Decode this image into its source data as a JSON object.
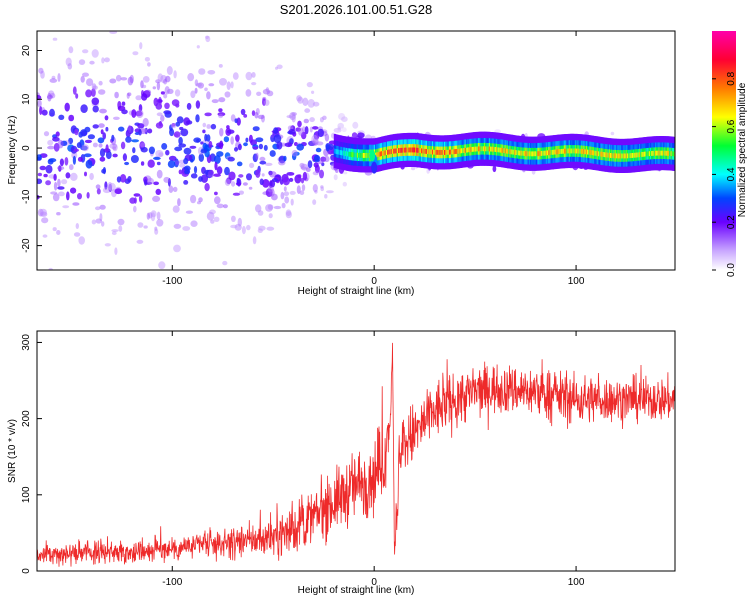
{
  "page_title": "S201.2026.101.00.51.G28",
  "chart_data": [
    {
      "type": "heatmap",
      "title": "S201.2026.101.00.51.G28",
      "xlabel": "Height of straight line (km)",
      "ylabel": "Frequency (Hz)",
      "xlim": [
        -167,
        149
      ],
      "ylim": [
        -25,
        24
      ],
      "xticks": [
        -100,
        0,
        100
      ],
      "xtick_labels": [
        "-100",
        "0",
        "100"
      ],
      "yticks": [
        -20,
        -10,
        0,
        10,
        20
      ],
      "ytick_labels": [
        "-20",
        "-10",
        "0",
        "10",
        "20"
      ],
      "colorbar": {
        "label": "Normalized spectral amplitude",
        "range": [
          0,
          1
        ],
        "ticks": [
          0,
          0.2,
          0.4,
          0.6,
          0.8
        ],
        "tick_labels": [
          "0.0",
          "0.2",
          "0.4",
          "0.6",
          "0.8"
        ],
        "colors": [
          "#ffffff",
          "#6a00ff",
          "#0044ff",
          "#00ffff",
          "#00ff33",
          "#ffff00",
          "#ff7a00",
          "#ff0033",
          "#ff00aa"
        ]
      },
      "signal": {
        "description_points_height_km": [
          -167,
          -100,
          -50,
          -20,
          0,
          20,
          50,
          100,
          149
        ],
        "center_frequency_hz": [
          0.5,
          0.5,
          -0.5,
          -0.5,
          -1.5,
          -0.5,
          -0.5,
          -1,
          -1.5
        ],
        "amplitude": [
          0.2,
          0.2,
          0.25,
          0.3,
          0.7,
          0.8,
          0.65,
          0.65,
          0.6
        ],
        "spread_hz": [
          15,
          15,
          12,
          5,
          2,
          2,
          2,
          2,
          2
        ]
      }
    },
    {
      "type": "line",
      "xlabel": "Height of straight line (km)",
      "ylabel": "SNR (10 * v/v)",
      "xlim": [
        -167,
        149
      ],
      "ylim": [
        0,
        315
      ],
      "xticks": [
        -100,
        0,
        100
      ],
      "xtick_labels": [
        "-100",
        "0",
        "100"
      ],
      "yticks": [
        0,
        100,
        200,
        300
      ],
      "ytick_labels": [
        "0",
        "100",
        "200",
        "300"
      ],
      "series": [
        {
          "name": "SNR",
          "color": "#ee2a2a",
          "x": [
            -167,
            -140,
            -120,
            -100,
            -80,
            -60,
            -50,
            -40,
            -30,
            -20,
            -10,
            0,
            5,
            8,
            9,
            10,
            11,
            12,
            15,
            20,
            25,
            30,
            40,
            50,
            60,
            80,
            100,
            120,
            149
          ],
          "y": [
            20,
            25,
            25,
            30,
            35,
            40,
            45,
            55,
            70,
            90,
            110,
            125,
            150,
            200,
            300,
            25,
            60,
            130,
            170,
            180,
            195,
            210,
            225,
            235,
            240,
            235,
            225,
            225,
            225
          ],
          "noise": [
            6,
            8,
            8,
            9,
            10,
            12,
            14,
            18,
            20,
            22,
            25,
            28,
            30,
            10,
            15,
            20,
            25,
            25,
            25,
            22,
            22,
            22,
            20,
            20,
            18,
            18,
            18,
            16,
            16
          ]
        }
      ]
    }
  ]
}
